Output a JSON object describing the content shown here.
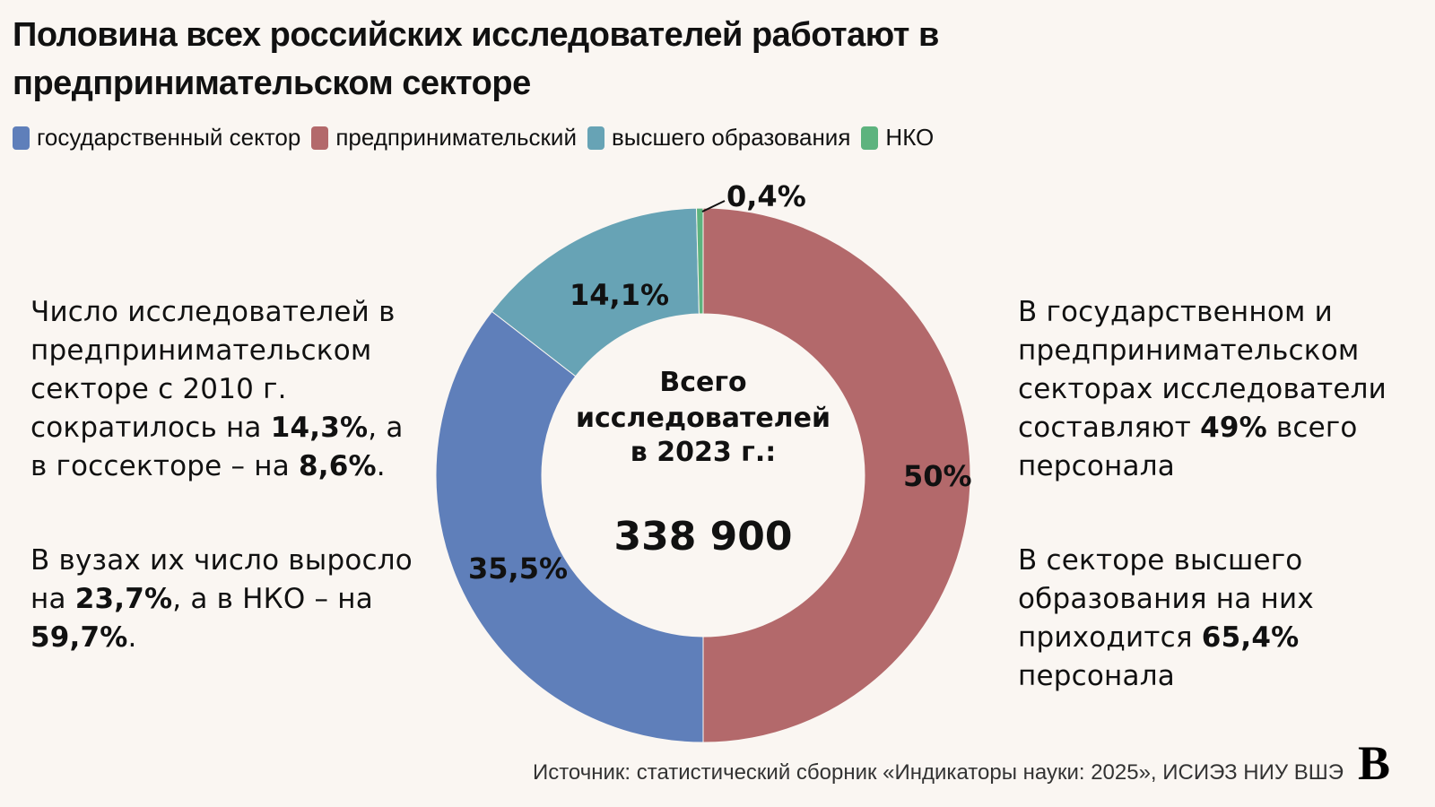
{
  "title": "Половина всех российских исследователей работают в предпринимательском секторе",
  "legend": [
    {
      "label": "государственный сектор",
      "color": "#5f7fba"
    },
    {
      "label": "предпринимательский",
      "color": "#b3696b"
    },
    {
      "label": "высшего образования",
      "color": "#67a3b5"
    },
    {
      "label": "НКО",
      "color": "#5db37e"
    }
  ],
  "center": {
    "line1": "Всего",
    "line2": "исследователей",
    "line3": "в 2023 г.:",
    "total": "338 900"
  },
  "slice_labels": {
    "ngo": "0,4%",
    "higher_ed": "14,1%",
    "business": "50%",
    "government": "35,5%"
  },
  "left_notes": {
    "note1": {
      "t1": "Число исследователей в предпринимательском секторе с 2010 г. сократилось на ",
      "b1": "14,3%",
      "t2": ", а в госсекторе – на ",
      "b2": "8,6%",
      "t3": "."
    },
    "note2": {
      "t1": "В вузах их число выросло на ",
      "b1": "23,7%",
      "t2": ", а в НКО – на ",
      "b2": "59,7%",
      "t3": "."
    }
  },
  "right_notes": {
    "note1": {
      "t1": "В государственном и предпринимательском секторах исследователи составляют ",
      "b1": "49%",
      "t2": " всего персонала"
    },
    "note2": {
      "t1": "В секторе высшего образования на них приходится ",
      "b1": "65,4%",
      "t2": " персонала"
    }
  },
  "source": "Источник: статистический сборник «Индикаторы науки: 2025», ИСИЭЗ НИУ ВШЭ",
  "logo": "В",
  "chart_data": {
    "type": "pie",
    "subtype": "donut",
    "title": "Половина всех российских исследователей работают в предпринимательском секторе",
    "center_label": "Всего исследователей в 2023 г.: 338 900",
    "total": 338900,
    "categories": [
      "предпринимательский",
      "государственный сектор",
      "высшего образования",
      "НКО"
    ],
    "values": [
      50.0,
      35.5,
      14.1,
      0.4
    ],
    "unit": "%",
    "colors": [
      "#b3696b",
      "#5f7fba",
      "#67a3b5",
      "#5db37e"
    ],
    "legend_position": "top"
  }
}
